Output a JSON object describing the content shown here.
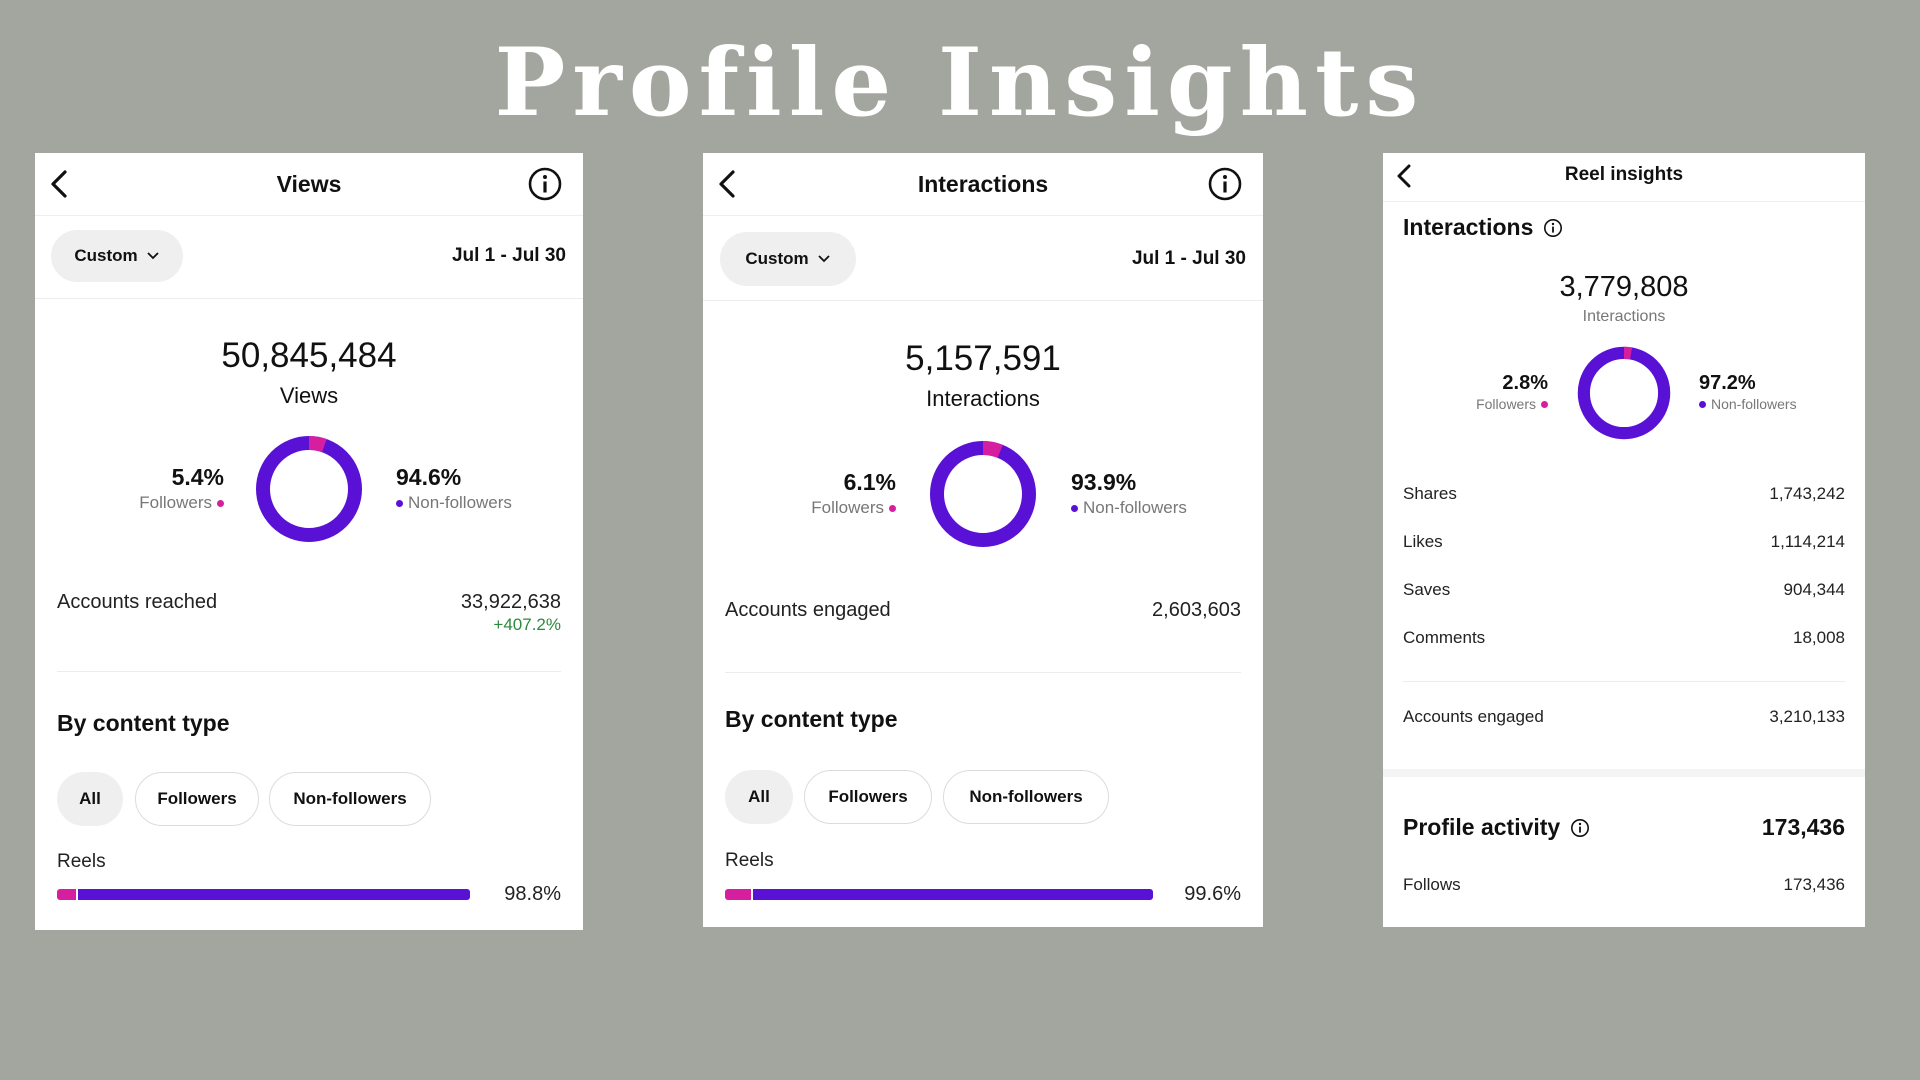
{
  "page": {
    "title": "Profile Insights"
  },
  "colors": {
    "followers": "#d61f9e",
    "non_followers": "#5a11d6",
    "positive": "#2c8a3c"
  },
  "views": {
    "title": "Views",
    "filter": "Custom",
    "date_range": "Jul 1 - Jul 30",
    "total": "50,845,484",
    "total_label": "Views",
    "followers_pct": "5.4%",
    "followers_label": "Followers",
    "followers_share": 0.054,
    "nonfollowers_pct": "94.6%",
    "nonfollowers_label": "Non-followers",
    "accounts_label": "Accounts reached",
    "accounts_value": "33,922,638",
    "accounts_change": "+407.2%",
    "section": "By content type",
    "tabs": [
      "All",
      "Followers",
      "Non-followers"
    ],
    "content_label": "Reels",
    "content_pct": "98.8%",
    "content_share": 0.988,
    "content_followers_share": 0.045
  },
  "interactions": {
    "title": "Interactions",
    "filter": "Custom",
    "date_range": "Jul 1 - Jul 30",
    "total": "5,157,591",
    "total_label": "Interactions",
    "followers_pct": "6.1%",
    "followers_label": "Followers",
    "followers_share": 0.061,
    "nonfollowers_pct": "93.9%",
    "nonfollowers_label": "Non-followers",
    "accounts_label": "Accounts engaged",
    "accounts_value": "2,603,603",
    "section": "By content type",
    "tabs": [
      "All",
      "Followers",
      "Non-followers"
    ],
    "content_label": "Reels",
    "content_pct": "99.6%",
    "content_share": 0.996,
    "content_followers_share": 0.06
  },
  "reel": {
    "title": "Reel insights",
    "section": "Interactions",
    "total": "3,779,808",
    "total_label": "Interactions",
    "followers_pct": "2.8%",
    "followers_label": "Followers",
    "followers_share": 0.028,
    "nonfollowers_pct": "97.2%",
    "nonfollowers_label": "Non-followers",
    "metrics": [
      {
        "label": "Shares",
        "value": "1,743,242"
      },
      {
        "label": "Likes",
        "value": "1,114,214"
      },
      {
        "label": "Saves",
        "value": "904,344"
      },
      {
        "label": "Comments",
        "value": "18,008"
      }
    ],
    "accounts_label": "Accounts engaged",
    "accounts_value": "3,210,133",
    "profile_activity_label": "Profile activity",
    "profile_activity_value": "173,436",
    "follows_label": "Follows",
    "follows_value": "173,436"
  }
}
